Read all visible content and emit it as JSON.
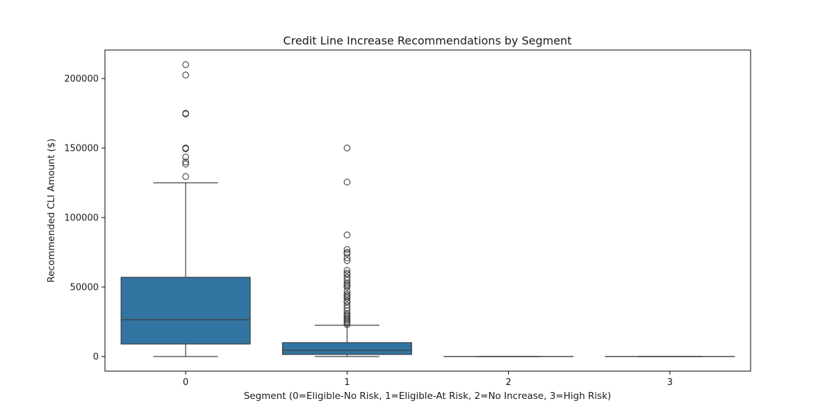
{
  "chart_data": {
    "type": "box",
    "title": "Credit Line Increase Recommendations by Segment",
    "xlabel": "Segment (0=Eligible-No Risk, 1=Eligible-At Risk, 2=No Increase, 3=High Risk)",
    "ylabel": "Recommended CLI Amount ($)",
    "ylim": [
      -10500,
      220500
    ],
    "yticks": [
      0,
      50000,
      100000,
      150000,
      200000
    ],
    "ytick_labels": [
      "0",
      "50000",
      "100000",
      "150000",
      "200000"
    ],
    "categories": [
      "0",
      "1",
      "2",
      "3"
    ],
    "grid": false,
    "box_color": "#3274a1",
    "line_color": "#3d3d3d",
    "boxes": [
      {
        "category": "0",
        "min": 0,
        "q1": 9000,
        "median": 26500,
        "q3": 57000,
        "max": 125000,
        "outliers": [
          129500,
          138500,
          140000,
          143500,
          149500,
          150000,
          150000,
          174500,
          175000,
          202500,
          210000
        ]
      },
      {
        "category": "1",
        "min": 0,
        "q1": 1500,
        "median": 4500,
        "q3": 10000,
        "max": 22500,
        "outliers": [
          23000,
          24000,
          25000,
          26000,
          27000,
          28000,
          29000,
          30000,
          31000,
          33000,
          35000,
          37000,
          39000,
          40000,
          42000,
          43000,
          44000,
          45000,
          47000,
          50000,
          51000,
          52000,
          53000,
          55000,
          57000,
          59000,
          60000,
          62000,
          69000,
          71000,
          74000,
          75000,
          77000,
          87500,
          125500,
          150000
        ]
      },
      {
        "category": "2",
        "min": 0,
        "q1": 0,
        "median": 0,
        "q3": 0,
        "max": 0,
        "outliers": []
      },
      {
        "category": "3",
        "min": 0,
        "q1": 0,
        "median": 0,
        "q3": 0,
        "max": 0,
        "outliers": []
      }
    ]
  }
}
